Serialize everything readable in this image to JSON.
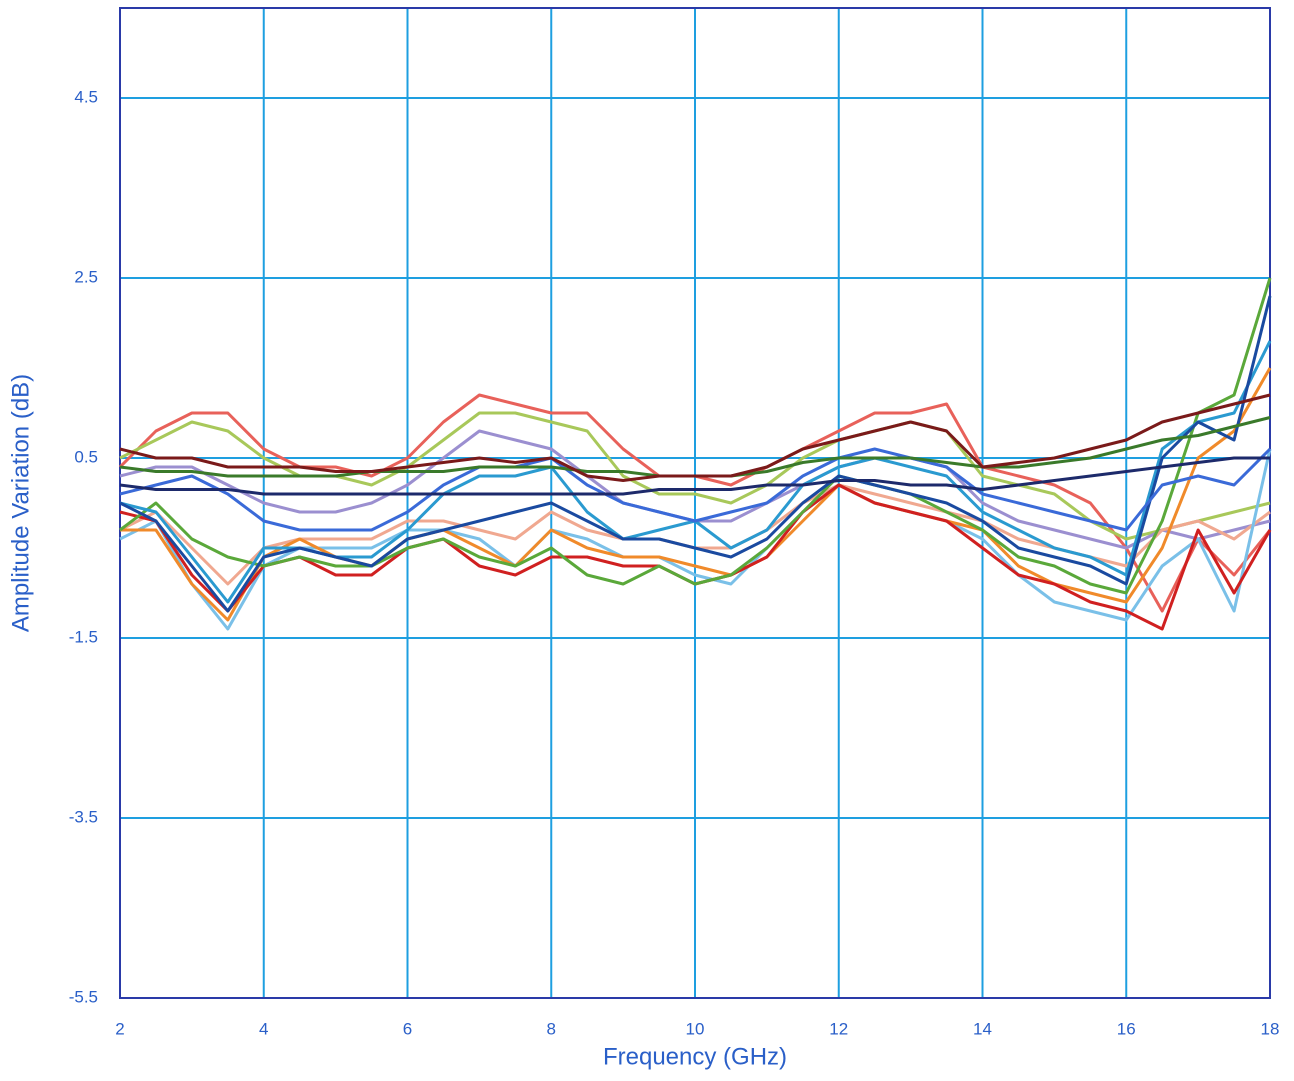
{
  "chart_data": {
    "type": "line",
    "x_label": "Frequency (GHz)",
    "y_label": "Amplitude Variation (dB)",
    "x": [
      2,
      2.5,
      3,
      3.5,
      4,
      4.5,
      5,
      5.5,
      6,
      6.5,
      7,
      7.5,
      8,
      8.5,
      9,
      9.5,
      10,
      10.5,
      11,
      11.5,
      12,
      12.5,
      13,
      13.5,
      14,
      14.5,
      15,
      15.5,
      16,
      16.5,
      17,
      17.5,
      18
    ],
    "xlim": [
      2,
      18
    ],
    "xticks": [
      2,
      4,
      6,
      8,
      10,
      12,
      14,
      16,
      18
    ],
    "ylim": [
      -5.5,
      5.5
    ],
    "yticks": [
      -5.5,
      -3.5,
      -1.5,
      0.5,
      2.5,
      4.5
    ],
    "grid": true,
    "grid_color": "#1e9fe0",
    "axis_color": "#2a3aa8",
    "text_color": "#2a5fc8",
    "series": [
      {
        "color": "#e8615a",
        "values": [
          0.4,
          0.8,
          1.0,
          1.0,
          0.6,
          0.4,
          0.4,
          0.3,
          0.5,
          0.9,
          1.2,
          1.1,
          1.0,
          1.0,
          0.6,
          0.3,
          0.3,
          0.2,
          0.4,
          0.6,
          0.8,
          1.0,
          1.0,
          1.1,
          0.4,
          0.3,
          0.2,
          0.0,
          -0.5,
          -1.2,
          -0.4,
          -0.8,
          -0.3
        ]
      },
      {
        "color": "#a8c85a",
        "values": [
          0.5,
          0.7,
          0.9,
          0.8,
          0.5,
          0.3,
          0.3,
          0.2,
          0.4,
          0.7,
          1.0,
          1.0,
          0.9,
          0.8,
          0.3,
          0.1,
          0.1,
          0.0,
          0.2,
          0.5,
          0.7,
          0.8,
          0.9,
          0.8,
          0.3,
          0.2,
          0.1,
          -0.2,
          -0.4,
          -0.3,
          -0.2,
          -0.1,
          0.0
        ]
      },
      {
        "color": "#9b8fd0",
        "values": [
          0.3,
          0.4,
          0.4,
          0.2,
          0.0,
          -0.1,
          -0.1,
          0.0,
          0.2,
          0.5,
          0.8,
          0.7,
          0.6,
          0.3,
          0.0,
          -0.1,
          -0.2,
          -0.2,
          0.0,
          0.2,
          0.4,
          0.5,
          0.5,
          0.4,
          0.0,
          -0.2,
          -0.3,
          -0.4,
          -0.5,
          -0.3,
          -0.4,
          -0.3,
          -0.2
        ]
      },
      {
        "color": "#f0a890",
        "values": [
          -0.3,
          -0.1,
          -0.5,
          -0.9,
          -0.5,
          -0.4,
          -0.4,
          -0.4,
          -0.2,
          -0.2,
          -0.3,
          -0.4,
          -0.1,
          -0.3,
          -0.4,
          -0.4,
          -0.5,
          -0.5,
          -0.3,
          0.0,
          0.2,
          0.1,
          0.0,
          -0.1,
          -0.2,
          -0.4,
          -0.5,
          -0.6,
          -0.7,
          -0.3,
          -0.2,
          -0.4,
          -0.1
        ]
      },
      {
        "color": "#7ac0e8",
        "values": [
          -0.4,
          -0.2,
          -0.9,
          -1.4,
          -0.7,
          -0.5,
          -0.5,
          -0.5,
          -0.3,
          -0.3,
          -0.4,
          -0.7,
          -0.3,
          -0.4,
          -0.6,
          -0.6,
          -0.8,
          -0.9,
          -0.5,
          -0.1,
          0.2,
          0.0,
          -0.1,
          -0.2,
          -0.4,
          -0.8,
          -1.1,
          -1.2,
          -1.3,
          -0.7,
          -0.4,
          -1.2,
          0.6
        ]
      },
      {
        "color": "#f08a2a",
        "values": [
          -0.3,
          -0.3,
          -0.9,
          -1.3,
          -0.6,
          -0.4,
          -0.6,
          -0.7,
          -0.4,
          -0.3,
          -0.5,
          -0.7,
          -0.3,
          -0.5,
          -0.6,
          -0.6,
          -0.7,
          -0.8,
          -0.6,
          -0.2,
          0.2,
          0.0,
          -0.1,
          -0.2,
          -0.3,
          -0.7,
          -0.9,
          -1.0,
          -1.1,
          -0.5,
          0.5,
          0.8,
          1.5
        ]
      },
      {
        "color": "#d02020",
        "values": [
          -0.1,
          -0.2,
          -0.8,
          -1.2,
          -0.7,
          -0.6,
          -0.8,
          -0.8,
          -0.5,
          -0.4,
          -0.7,
          -0.8,
          -0.6,
          -0.6,
          -0.7,
          -0.7,
          -0.9,
          -0.8,
          -0.6,
          -0.1,
          0.2,
          0.0,
          -0.1,
          -0.2,
          -0.5,
          -0.8,
          -0.9,
          -1.1,
          -1.2,
          -1.4,
          -0.3,
          -1.0,
          -0.3
        ]
      },
      {
        "color": "#5aa83a",
        "values": [
          -0.3,
          0.0,
          -0.4,
          -0.6,
          -0.7,
          -0.6,
          -0.7,
          -0.7,
          -0.5,
          -0.4,
          -0.6,
          -0.7,
          -0.5,
          -0.8,
          -0.9,
          -0.7,
          -0.9,
          -0.8,
          -0.5,
          -0.1,
          0.3,
          0.2,
          0.1,
          -0.1,
          -0.3,
          -0.6,
          -0.7,
          -0.9,
          -1.0,
          -0.2,
          1.0,
          1.2,
          2.5
        ]
      },
      {
        "color": "#2a9ad0",
        "values": [
          0.0,
          -0.1,
          -0.6,
          -1.1,
          -0.5,
          -0.5,
          -0.6,
          -0.6,
          -0.3,
          0.1,
          0.3,
          0.3,
          0.4,
          -0.1,
          -0.4,
          -0.3,
          -0.2,
          -0.5,
          -0.3,
          0.2,
          0.4,
          0.5,
          0.4,
          0.3,
          -0.1,
          -0.3,
          -0.5,
          -0.6,
          -0.8,
          0.6,
          0.9,
          1.0,
          1.8
        ]
      },
      {
        "color": "#1a4aa0",
        "values": [
          0.0,
          -0.2,
          -0.7,
          -1.2,
          -0.6,
          -0.5,
          -0.6,
          -0.7,
          -0.4,
          -0.3,
          -0.2,
          -0.1,
          0.0,
          -0.2,
          -0.4,
          -0.4,
          -0.5,
          -0.6,
          -0.4,
          0.0,
          0.3,
          0.2,
          0.1,
          0.0,
          -0.2,
          -0.5,
          -0.6,
          -0.7,
          -0.9,
          0.5,
          0.9,
          0.7,
          2.3
        ]
      },
      {
        "color": "#3a6ad8",
        "values": [
          0.1,
          0.2,
          0.3,
          0.1,
          -0.2,
          -0.3,
          -0.3,
          -0.3,
          -0.1,
          0.2,
          0.4,
          0.4,
          0.5,
          0.2,
          0.0,
          -0.1,
          -0.2,
          -0.1,
          0.0,
          0.3,
          0.5,
          0.6,
          0.5,
          0.4,
          0.1,
          0.0,
          -0.1,
          -0.2,
          -0.3,
          0.2,
          0.3,
          0.2,
          0.6
        ]
      },
      {
        "color": "#3a7a2a",
        "values": [
          0.4,
          0.35,
          0.35,
          0.3,
          0.3,
          0.3,
          0.3,
          0.35,
          0.35,
          0.35,
          0.4,
          0.4,
          0.4,
          0.35,
          0.35,
          0.3,
          0.3,
          0.3,
          0.35,
          0.45,
          0.5,
          0.5,
          0.5,
          0.45,
          0.4,
          0.4,
          0.45,
          0.5,
          0.6,
          0.7,
          0.75,
          0.85,
          0.95
        ]
      },
      {
        "color": "#7a1a1a",
        "values": [
          0.6,
          0.5,
          0.5,
          0.4,
          0.4,
          0.4,
          0.35,
          0.35,
          0.4,
          0.45,
          0.5,
          0.45,
          0.5,
          0.3,
          0.25,
          0.3,
          0.3,
          0.3,
          0.4,
          0.6,
          0.7,
          0.8,
          0.9,
          0.8,
          0.4,
          0.45,
          0.5,
          0.6,
          0.7,
          0.9,
          1.0,
          1.1,
          1.2
        ]
      },
      {
        "color": "#1d2a6b",
        "values": [
          0.2,
          0.15,
          0.15,
          0.15,
          0.1,
          0.1,
          0.1,
          0.1,
          0.1,
          0.1,
          0.1,
          0.1,
          0.1,
          0.1,
          0.1,
          0.15,
          0.15,
          0.15,
          0.2,
          0.2,
          0.25,
          0.25,
          0.2,
          0.2,
          0.15,
          0.2,
          0.25,
          0.3,
          0.35,
          0.4,
          0.45,
          0.5,
          0.5
        ]
      }
    ]
  }
}
